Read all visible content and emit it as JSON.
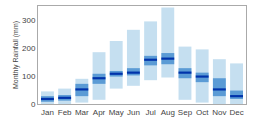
{
  "chart_data": {
    "type": "range_bar",
    "categories": [
      "Jan",
      "Feb",
      "Mar",
      "Apr",
      "May",
      "Jun",
      "Jul",
      "Aug",
      "Sep",
      "Oct",
      "Nov",
      "Dec"
    ],
    "series": [
      {
        "type": "range",
        "color": "#c5dff0",
        "low": [
          0,
          0,
          5,
          15,
          55,
          65,
          85,
          95,
          15,
          5,
          0,
          0
        ],
        "high": [
          45,
          55,
          90,
          185,
          225,
          265,
          295,
          345,
          205,
          195,
          160,
          145
        ]
      },
      {
        "type": "range",
        "color": "#5b9bd5",
        "low": [
          8,
          12,
          28,
          72,
          98,
          102,
          138,
          142,
          92,
          78,
          28,
          18
        ],
        "high": [
          28,
          32,
          72,
          108,
          118,
          128,
          172,
          182,
          128,
          112,
          92,
          48
        ]
      },
      {
        "type": "median",
        "color": "#0033aa",
        "values": [
          18,
          22,
          52,
          92,
          108,
          112,
          158,
          162,
          112,
          98,
          52,
          28
        ]
      }
    ],
    "ylabel": "Monthly Rainfall (mm)",
    "ylim": [
      0,
      350
    ],
    "yticks": [
      0,
      100,
      200,
      300
    ],
    "grid": false
  }
}
